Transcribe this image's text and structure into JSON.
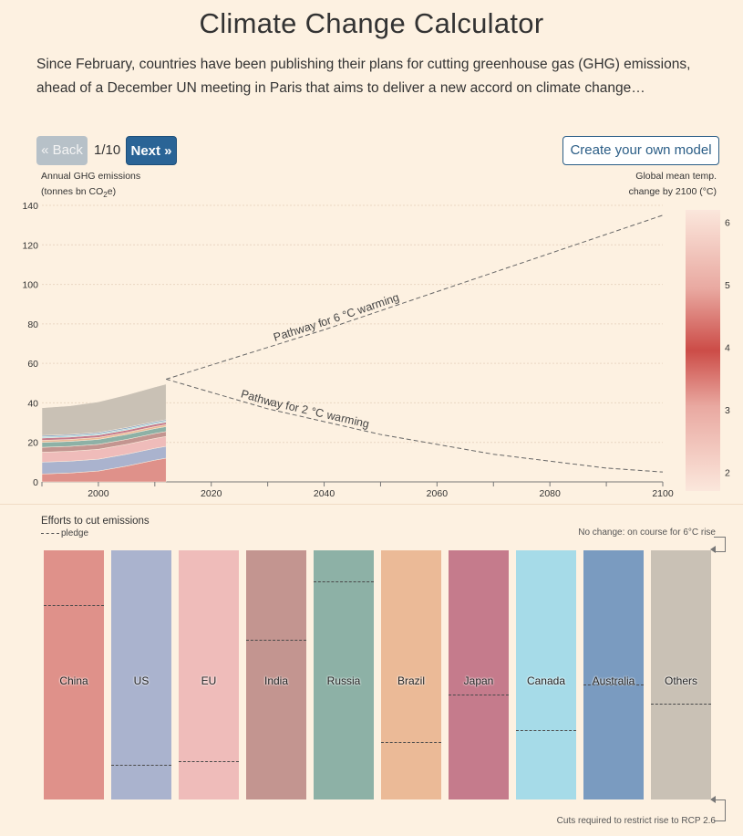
{
  "page": {
    "title": "Climate Change Calculator",
    "intro": "Since February, countries have been publishing their plans for cutting greenhouse gas (GHG) emissions, ahead of a December UN meeting in Paris that aims to deliver a new accord on climate change…"
  },
  "nav": {
    "back_label": "« Back",
    "page_indicator": "1/10",
    "next_label": "Next »",
    "model_label": "Create your own model"
  },
  "axes": {
    "left_title_line1": "Annual GHG emissions",
    "left_title_line2_pre": "(tonnes bn CO",
    "left_title_sub": "2",
    "left_title_line2_post": "e)",
    "right_title_line1": "Global mean temp.",
    "right_title_line2": "change by 2100 (°C)"
  },
  "chart_data": {
    "type": "area",
    "x_range": [
      1990,
      2100
    ],
    "ylim": [
      0,
      140
    ],
    "y_ticks": [
      0,
      20,
      40,
      60,
      80,
      100,
      120,
      140
    ],
    "x_ticks": [
      2000,
      2020,
      2040,
      2060,
      2080,
      2100
    ],
    "x": [
      1990,
      1995,
      2000,
      2005,
      2010,
      2012
    ],
    "series": [
      {
        "color": "#df918a",
        "values": [
          4,
          4.5,
          5.5,
          8,
          11,
          12
        ]
      },
      {
        "color": "#aab3ce",
        "values": [
          6,
          6,
          6,
          6,
          6,
          6
        ]
      },
      {
        "color": "#efbcba",
        "values": [
          5,
          5,
          5,
          5,
          5,
          5
        ]
      },
      {
        "color": "#c39590",
        "values": [
          2.5,
          2.5,
          2.5,
          2.5,
          2.5,
          2.5
        ]
      },
      {
        "color": "#8db1a6",
        "values": [
          2.5,
          2.5,
          2.5,
          2.5,
          2.5,
          2.5
        ]
      },
      {
        "color": "#ebba97",
        "values": [
          1,
          1,
          1,
          1,
          1,
          1
        ]
      },
      {
        "color": "#c57b8c",
        "values": [
          1.2,
          1.2,
          1.2,
          1.2,
          1.2,
          1.2
        ]
      },
      {
        "color": "#a6dbe8",
        "values": [
          0.7,
          0.7,
          0.7,
          0.7,
          0.7,
          0.7
        ]
      },
      {
        "color": "#7a9bc0",
        "values": [
          0.6,
          0.6,
          0.6,
          0.6,
          0.6,
          0.6
        ]
      },
      {
        "color": "#c9c1b5",
        "values": [
          14,
          14.5,
          15.5,
          16.5,
          17.5,
          18
        ]
      }
    ],
    "pathways": [
      {
        "name": "Pathway for 6 °C warming",
        "x": [
          2012,
          2040,
          2070,
          2100
        ],
        "y": [
          52,
          77,
          106,
          135
        ]
      },
      {
        "name": "Pathway for 2 °C warming",
        "x": [
          2012,
          2030,
          2050,
          2070,
          2090,
          2100
        ],
        "y": [
          52,
          37,
          24,
          14,
          7,
          5
        ]
      }
    ],
    "temp_scale": {
      "ticks": [
        2,
        3,
        4,
        5,
        6
      ],
      "range": [
        1.7,
        6.2
      ]
    }
  },
  "efforts": {
    "title": "Efforts to cut emissions",
    "pledge_label": "pledge",
    "no_change_label": "No change: on course for 6°C rise",
    "cuts_label": "Cuts required to restrict rise to RCP 2.6",
    "countries": [
      {
        "name": "China",
        "color": "#df918a",
        "pledge": 0.78
      },
      {
        "name": "US",
        "color": "#aab3ce",
        "pledge": 0.14
      },
      {
        "name": "EU",
        "color": "#efbcba",
        "pledge": 0.155
      },
      {
        "name": "India",
        "color": "#c39590",
        "pledge": 0.64
      },
      {
        "name": "Russia",
        "color": "#8db1a6",
        "pledge": 0.875
      },
      {
        "name": "Brazil",
        "color": "#ebba97",
        "pledge": 0.23
      },
      {
        "name": "Japan",
        "color": "#c57b8c",
        "pledge": 0.42
      },
      {
        "name": "Canada",
        "color": "#a6dbe8",
        "pledge": 0.28
      },
      {
        "name": "Australia",
        "color": "#7a9bc0",
        "pledge": 0.46
      },
      {
        "name": "Others",
        "color": "#c9c1b5",
        "pledge": 0.385
      }
    ]
  }
}
